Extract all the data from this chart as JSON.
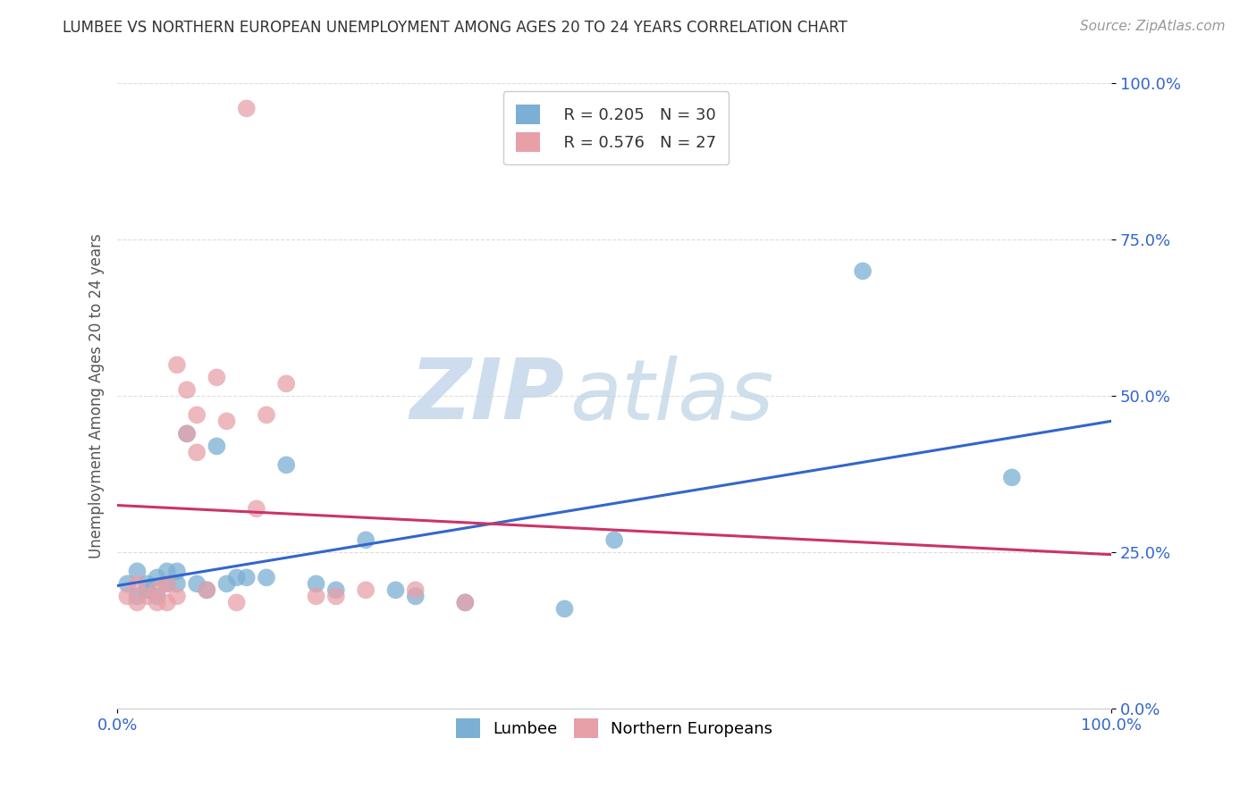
{
  "title": "LUMBEE VS NORTHERN EUROPEAN UNEMPLOYMENT AMONG AGES 20 TO 24 YEARS CORRELATION CHART",
  "source": "Source: ZipAtlas.com",
  "ylabel": "Unemployment Among Ages 20 to 24 years",
  "xlim": [
    0.0,
    1.0
  ],
  "ylim": [
    0.0,
    1.0
  ],
  "ytick_positions": [
    0.0,
    0.25,
    0.5,
    0.75,
    1.0
  ],
  "xtick_positions": [
    0.0,
    1.0
  ],
  "legend_R1": "R = 0.205",
  "legend_N1": "N = 30",
  "legend_R2": "R = 0.576",
  "legend_N2": "N = 27",
  "lumbee_color": "#7bafd4",
  "northern_color": "#e8a0a8",
  "lumbee_line_color": "#3366cc",
  "northern_line_color": "#cc3366",
  "watermark_zip": "ZIP",
  "watermark_atlas": "atlas",
  "watermark_color_zip": "#c8d8e8",
  "watermark_color_atlas": "#c0cfe0",
  "lumbee_scatter_x": [
    0.01,
    0.02,
    0.02,
    0.03,
    0.03,
    0.04,
    0.04,
    0.05,
    0.05,
    0.06,
    0.06,
    0.07,
    0.08,
    0.09,
    0.1,
    0.11,
    0.12,
    0.13,
    0.15,
    0.17,
    0.2,
    0.22,
    0.25,
    0.28,
    0.3,
    0.35,
    0.45,
    0.5,
    0.75,
    0.9
  ],
  "lumbee_scatter_y": [
    0.2,
    0.18,
    0.22,
    0.2,
    0.19,
    0.21,
    0.18,
    0.2,
    0.22,
    0.2,
    0.22,
    0.44,
    0.2,
    0.19,
    0.42,
    0.2,
    0.21,
    0.21,
    0.21,
    0.39,
    0.2,
    0.19,
    0.27,
    0.19,
    0.18,
    0.17,
    0.16,
    0.27,
    0.7,
    0.37
  ],
  "northern_scatter_x": [
    0.01,
    0.02,
    0.02,
    0.03,
    0.04,
    0.04,
    0.05,
    0.05,
    0.06,
    0.06,
    0.07,
    0.07,
    0.08,
    0.08,
    0.09,
    0.1,
    0.11,
    0.12,
    0.13,
    0.14,
    0.15,
    0.17,
    0.2,
    0.22,
    0.25,
    0.3,
    0.35
  ],
  "northern_scatter_y": [
    0.18,
    0.17,
    0.2,
    0.18,
    0.17,
    0.19,
    0.17,
    0.2,
    0.18,
    0.55,
    0.44,
    0.51,
    0.41,
    0.47,
    0.19,
    0.53,
    0.46,
    0.17,
    0.96,
    0.32,
    0.47,
    0.52,
    0.18,
    0.18,
    0.19,
    0.19,
    0.17
  ],
  "background_color": "#ffffff",
  "grid_color": "#dddddd",
  "tick_label_color": "#3366cc",
  "title_color": "#333333",
  "ylabel_color": "#555555"
}
